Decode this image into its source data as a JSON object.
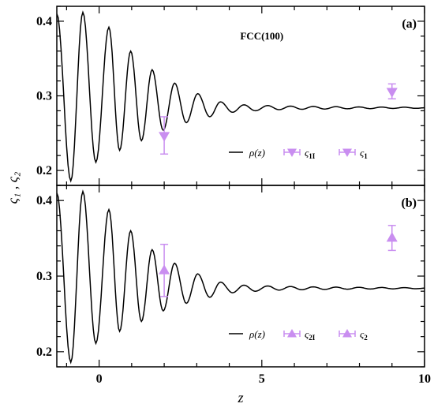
{
  "figure": {
    "ylabel": "ς₁ , ς₂",
    "xlabel": "z",
    "colors": {
      "line": "#000000",
      "marker": "#c98ef0",
      "frame": "#000000"
    }
  },
  "chart_data": [
    {
      "type": "line",
      "panel_label": "(a)",
      "structure_label": "FCC(100)",
      "xlim": [
        -1.3,
        10
      ],
      "ylim": [
        0.18,
        0.42
      ],
      "x_ticks": [
        0,
        5,
        10
      ],
      "y_ticks": [
        0.2,
        0.3,
        0.4
      ],
      "y_tick_labels": [
        "0.2",
        "0.3",
        "0.4"
      ],
      "grid": false,
      "legend_position": "bottom-right",
      "legend": [
        {
          "label": "ρ(z)",
          "type": "line"
        },
        {
          "label": "ς",
          "sub": "1I",
          "type": "marker",
          "marker": "triangle-down"
        },
        {
          "label": "ς",
          "sub": "1",
          "type": "marker",
          "marker": "triangle-down"
        }
      ],
      "density": {
        "name": "ρ(z)",
        "peaks": [
          {
            "x": -0.5,
            "y": 0.412
          },
          {
            "x": 0.3,
            "y": 0.392
          },
          {
            "x": 0.97,
            "y": 0.36
          },
          {
            "x": 1.63,
            "y": 0.335
          },
          {
            "x": 2.32,
            "y": 0.317
          },
          {
            "x": 3.03,
            "y": 0.303
          },
          {
            "x": 3.73,
            "y": 0.292
          },
          {
            "x": 4.45,
            "y": 0.288
          },
          {
            "x": 5.18,
            "y": 0.287
          }
        ],
        "troughs": [
          {
            "x": -0.87,
            "y": 0.186
          },
          {
            "x": -0.1,
            "y": 0.211
          },
          {
            "x": 0.63,
            "y": 0.227
          },
          {
            "x": 1.3,
            "y": 0.24
          },
          {
            "x": 1.97,
            "y": 0.254
          },
          {
            "x": 2.68,
            "y": 0.264
          },
          {
            "x": 3.4,
            "y": 0.272
          },
          {
            "x": 4.1,
            "y": 0.278
          },
          {
            "x": 4.8,
            "y": 0.28
          }
        ],
        "start": {
          "x": -1.3,
          "y": 0.41
        },
        "tail_level": 0.284
      },
      "points": [
        {
          "series": "ς1I",
          "x": 2.0,
          "y": 0.246,
          "err_low": 0.222,
          "err_high": 0.272,
          "marker": "triangle-down"
        },
        {
          "series": "ς1",
          "x": 9.0,
          "y": 0.305,
          "err_low": 0.296,
          "err_high": 0.316,
          "marker": "triangle-down"
        }
      ]
    },
    {
      "type": "line",
      "panel_label": "(b)",
      "xlim": [
        -1.3,
        10
      ],
      "ylim": [
        0.18,
        0.42
      ],
      "x_ticks": [
        0,
        5,
        10
      ],
      "x_tick_labels": [
        "0",
        "5",
        "10"
      ],
      "y_ticks": [
        0.2,
        0.3,
        0.4
      ],
      "y_tick_labels": [
        "0.2",
        "0.3",
        "0.4"
      ],
      "grid": false,
      "legend_position": "bottom-right",
      "legend": [
        {
          "label": "ρ(z)",
          "type": "line"
        },
        {
          "label": "ς",
          "sub": "2I",
          "type": "marker",
          "marker": "triangle-up"
        },
        {
          "label": "ς",
          "sub": "2",
          "type": "marker",
          "marker": "triangle-up"
        }
      ],
      "density": {
        "name": "ρ(z)",
        "peaks": [
          {
            "x": -0.5,
            "y": 0.412
          },
          {
            "x": 0.3,
            "y": 0.388
          },
          {
            "x": 0.97,
            "y": 0.36
          },
          {
            "x": 1.63,
            "y": 0.335
          },
          {
            "x": 2.32,
            "y": 0.317
          },
          {
            "x": 3.03,
            "y": 0.303
          },
          {
            "x": 3.73,
            "y": 0.292
          },
          {
            "x": 4.45,
            "y": 0.288
          },
          {
            "x": 5.18,
            "y": 0.287
          }
        ],
        "troughs": [
          {
            "x": -0.87,
            "y": 0.186
          },
          {
            "x": -0.1,
            "y": 0.211
          },
          {
            "x": 0.63,
            "y": 0.227
          },
          {
            "x": 1.3,
            "y": 0.24
          },
          {
            "x": 1.97,
            "y": 0.254
          },
          {
            "x": 2.68,
            "y": 0.264
          },
          {
            "x": 3.4,
            "y": 0.272
          },
          {
            "x": 4.1,
            "y": 0.278
          },
          {
            "x": 4.8,
            "y": 0.28
          }
        ],
        "start": {
          "x": -1.3,
          "y": 0.41
        },
        "tail_level": 0.284
      },
      "points": [
        {
          "series": "ς2I",
          "x": 2.0,
          "y": 0.308,
          "err_low": 0.273,
          "err_high": 0.342,
          "marker": "triangle-up"
        },
        {
          "series": "ς2",
          "x": 9.0,
          "y": 0.351,
          "err_low": 0.334,
          "err_high": 0.367,
          "marker": "triangle-up"
        }
      ]
    }
  ]
}
